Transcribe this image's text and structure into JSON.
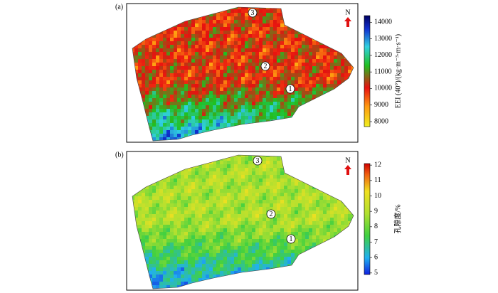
{
  "panels": [
    {
      "label": "(a)",
      "north": "N",
      "markers": [
        "1",
        "2",
        "3"
      ],
      "colorbar": {
        "title": "EEI (40°)/(kg·m⁻³·m·s⁻¹)",
        "lim": [
          7700,
          14400
        ],
        "ticks": [
          8000,
          9000,
          10000,
          11000,
          12000,
          13000,
          14000
        ]
      }
    },
    {
      "label": "(b)",
      "north": "N",
      "markers": [
        "1",
        "2",
        "3"
      ],
      "colorbar": {
        "title": "孔隙度/%",
        "lim": [
          4.9,
          12.1
        ],
        "ticks": [
          5,
          6,
          7,
          8,
          9,
          10,
          11,
          12
        ]
      }
    }
  ]
}
